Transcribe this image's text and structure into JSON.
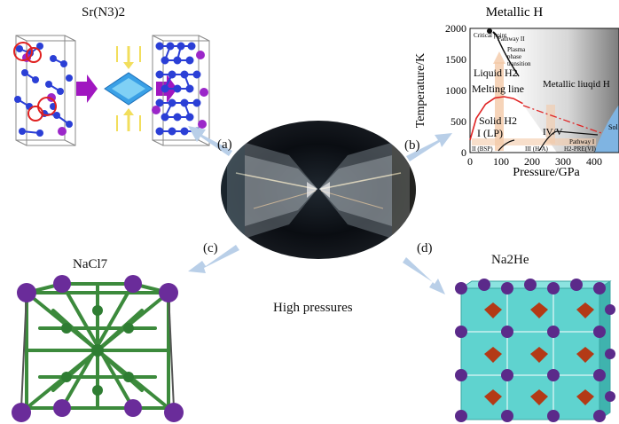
{
  "center": {
    "caption": "High pressures"
  },
  "panels": {
    "a": {
      "tag": "(a)",
      "title": "Sr(N3)2"
    },
    "b": {
      "tag": "(b)",
      "title": "Metallic H"
    },
    "c": {
      "tag": "(c)",
      "title": "NaCl7"
    },
    "d": {
      "tag": "(d)",
      "title": "Na2He"
    }
  },
  "phase_diagram": {
    "xlabel": "Pressure/GPa",
    "ylabel": "Temperature/K",
    "xticks": [
      "0",
      "100",
      "200",
      "300",
      "400"
    ],
    "yticks": [
      "0",
      "500",
      "1000",
      "1500",
      "2000"
    ],
    "region_labels": {
      "liquid": "Liquid H2",
      "melting": "Melting line",
      "metallic_liquid": "Metallic liuqid H",
      "solid": "Solid H2",
      "solid_phase": "I (LP)",
      "critical": "Critical point",
      "pathway2": "Pathway II",
      "plasma": "Plasma phase transition",
      "iv_v": "IV/V",
      "pathway1": "Pathway I",
      "phase2": "II (BSP)",
      "phase3": "III (H-A)",
      "phase6": "H2-PRE(VI)",
      "solid_mh": "Sol MH"
    }
  },
  "chart_data": {
    "type": "line",
    "title": "Metallic H",
    "xlabel": "Pressure/GPa",
    "ylabel": "Temperature/K",
    "xlim": [
      0,
      480
    ],
    "ylim": [
      0,
      2000
    ],
    "series": [
      {
        "x": [
          0,
          20,
          50,
          80,
          110,
          140,
          170
        ],
        "y": [
          200,
          550,
          780,
          880,
          900,
          870,
          790
        ]
      }
    ]
  },
  "colors": {
    "arrow": "#b9cfe8",
    "nitrogen": "#2b3fd6",
    "strontium": "#9b27c9",
    "chlorine": "#2e7d32",
    "sodium": "#6a2c9a",
    "cube": "#5fd3cf",
    "helium": "#b33a16",
    "melting_line": "#e02424"
  }
}
